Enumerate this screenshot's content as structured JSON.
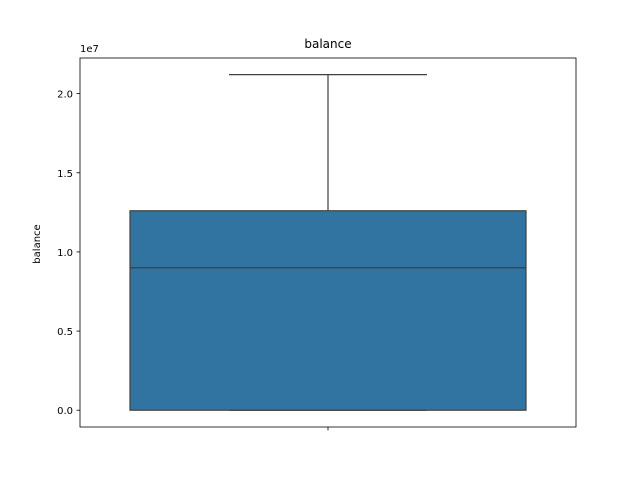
{
  "chart_data": {
    "type": "box",
    "title": "balance",
    "xlabel": "",
    "ylabel": "balance",
    "y_offset_text": "1e7",
    "ylim": [
      -1060000,
      22250000
    ],
    "y_ticks": [
      0,
      5000000,
      10000000,
      15000000,
      20000000
    ],
    "y_tick_labels": [
      "0.0",
      "0.5",
      "1.0",
      "1.5",
      "2.0"
    ],
    "grid": false,
    "legend": "none",
    "box": {
      "whisker_low": 0,
      "q1": 0,
      "median": 9000000,
      "q3": 12600000,
      "whisker_high": 21200000
    },
    "colors": {
      "box_fill": "#3274a1",
      "lines": "#3f3f3f",
      "axes": "#000000"
    }
  }
}
